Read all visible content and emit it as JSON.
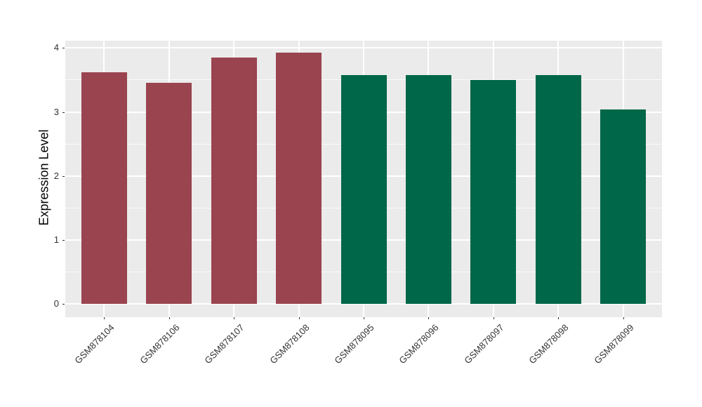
{
  "figure": {
    "background_color": "#FFFFFF",
    "panel_background_color": "#EBEBEB",
    "gridline_color": "#FFFFFF",
    "tick_color": "#333333",
    "axis_text_color": "#333333",
    "axis_title_color": "#000000",
    "group_red_color": "#9A4450",
    "group_green_color": "#006748"
  },
  "chart_data": {
    "type": "bar",
    "title": "",
    "xlabel": "",
    "ylabel": "Expression Level",
    "categories": [
      "GSM878104",
      "GSM878106",
      "GSM878107",
      "GSM878108",
      "GSM878095",
      "GSM878096",
      "GSM878097",
      "GSM878098",
      "GSM878099"
    ],
    "values": [
      3.62,
      3.46,
      3.85,
      3.93,
      3.58,
      3.58,
      3.5,
      3.58,
      3.04
    ],
    "bar_colors": [
      "#9A4450",
      "#9A4450",
      "#9A4450",
      "#9A4450",
      "#006748",
      "#006748",
      "#006748",
      "#006748",
      "#006748"
    ],
    "ylim": [
      0,
      4.11
    ],
    "yticks": [
      0,
      1,
      2,
      3,
      4
    ],
    "yticks_minor": [
      0.5,
      1.5,
      2.5,
      3.5
    ],
    "grid": true,
    "legend": "none",
    "x_tick_rotation": 45
  }
}
